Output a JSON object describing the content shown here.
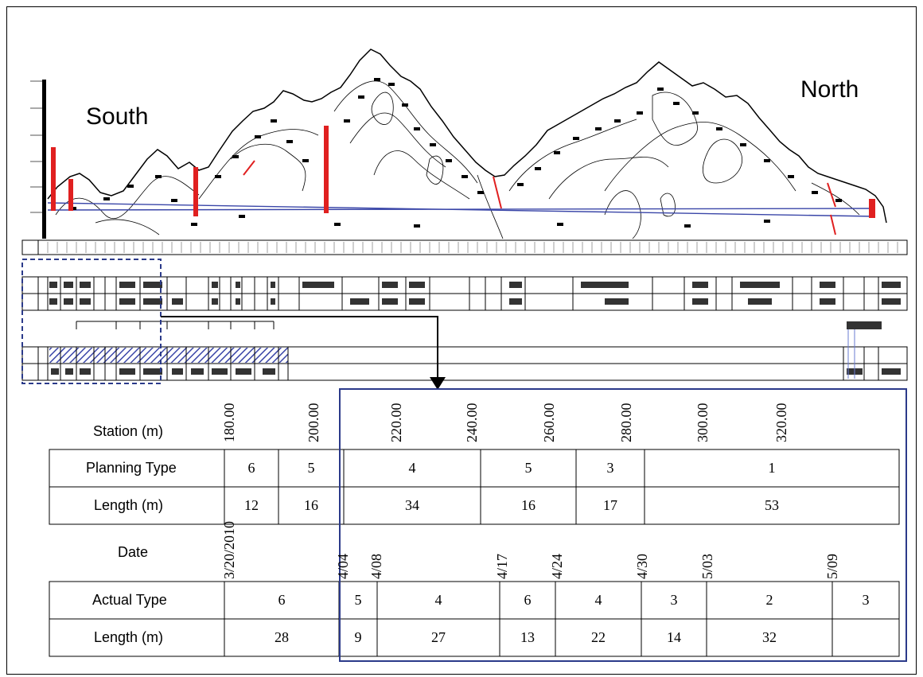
{
  "profile": {
    "south_label": "South",
    "north_label": "North"
  },
  "detail": {
    "station_label": "Station (m)",
    "stations": [
      "180.00",
      "200.00",
      "220.00",
      "240.00",
      "260.00",
      "280.00",
      "300.00",
      "320.00"
    ],
    "planning_type_label": "Planning Type",
    "planning_types": [
      "6",
      "5",
      "4",
      "5",
      "3",
      "1"
    ],
    "planning_length_label": "Length (m)",
    "planning_lengths": [
      "12",
      "16",
      "34",
      "16",
      "17",
      "53"
    ],
    "date_label": "Date",
    "dates": [
      "3/20/2010",
      "4/04",
      "4/08",
      "4/17",
      "4/24",
      "4/30",
      "5/03",
      "5/09"
    ],
    "actual_type_label": "Actual Type",
    "actual_types": [
      "6",
      "5",
      "4",
      "6",
      "4",
      "3",
      "2",
      "3"
    ],
    "actual_length_label": "Length (m)",
    "actual_lengths": [
      "28",
      "9",
      "27",
      "13",
      "22",
      "14",
      "32"
    ]
  },
  "colors": {
    "detail_border": "#2b3a8a",
    "dashed_box": "#2b3a8a",
    "alignment_line": "#3a46a8",
    "marker_red": "#e02020",
    "hatch": "#3a46a8"
  }
}
